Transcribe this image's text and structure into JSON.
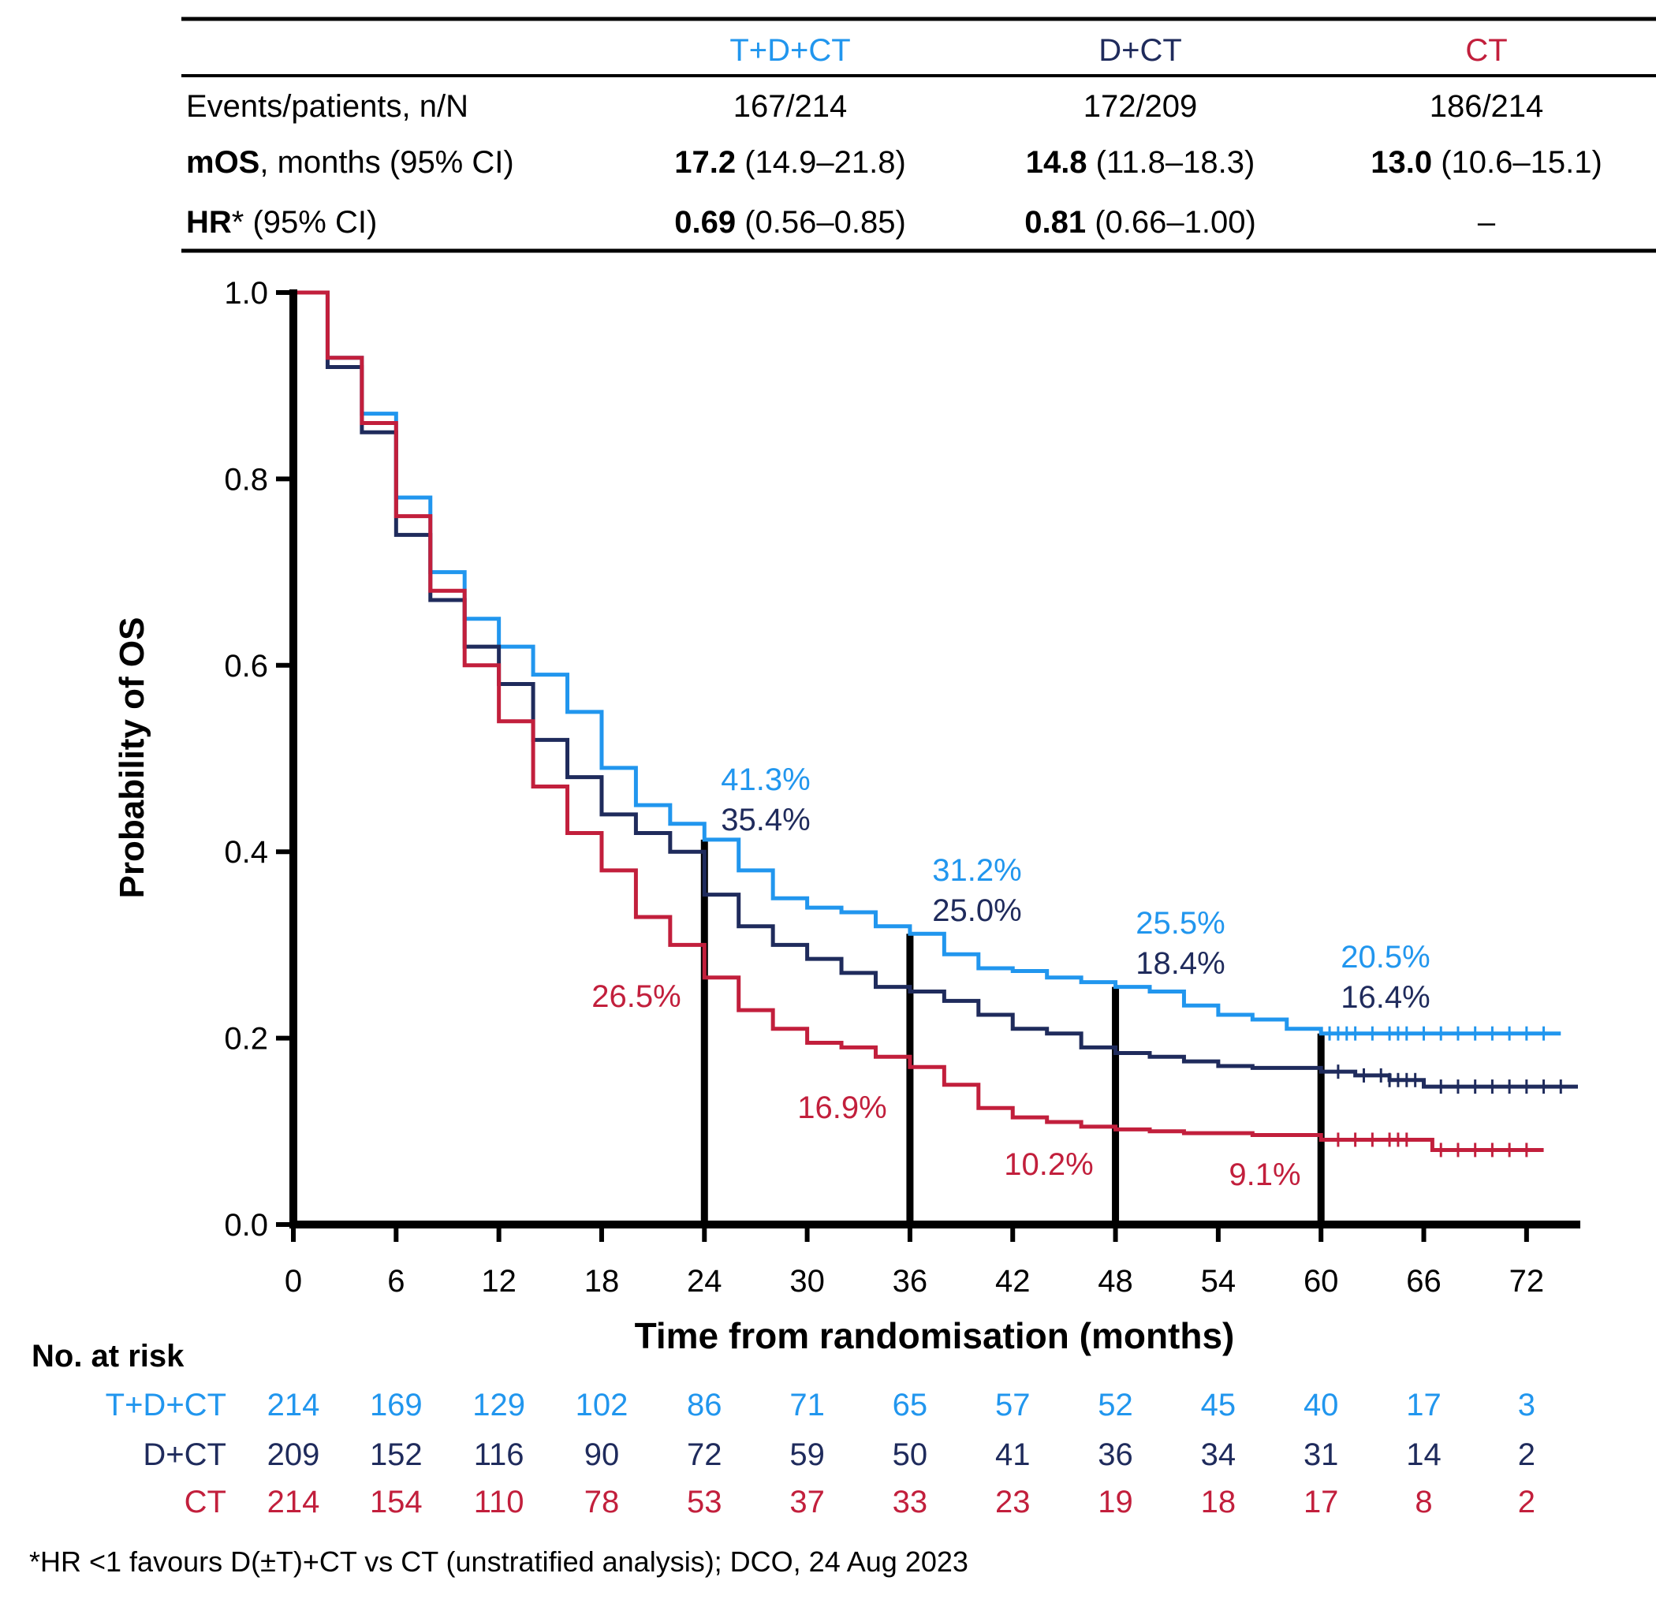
{
  "colors": {
    "tdct": "#2196ee",
    "dct": "#1f2b5c",
    "ct": "#c21f3c",
    "axis": "#000000"
  },
  "table": {
    "headers": [
      "T+D+CT",
      "D+CT",
      "CT"
    ],
    "rows": [
      {
        "label": "Events/patients, n/N",
        "cells": [
          {
            "bold": "",
            "rest": "167/214"
          },
          {
            "bold": "",
            "rest": "172/209"
          },
          {
            "bold": "",
            "rest": "186/214"
          }
        ]
      },
      {
        "label_bold": "mOS",
        "label": ", months (95% CI)",
        "cells": [
          {
            "bold": "17.2",
            "rest": " (14.9–21.8)"
          },
          {
            "bold": "14.8",
            "rest": " (11.8–18.3)"
          },
          {
            "bold": "13.0",
            "rest": " (10.6–15.1)"
          }
        ]
      },
      {
        "label_bold": "HR",
        "label": "* (95% CI)",
        "cells": [
          {
            "bold": "0.69",
            "rest": " (0.56–0.85)"
          },
          {
            "bold": "0.81",
            "rest": " (0.66–1.00)"
          },
          {
            "bold": "",
            "rest": "–"
          }
        ]
      }
    ]
  },
  "chart_data": {
    "type": "line",
    "step": true,
    "xlabel": "Time from randomisation (months)",
    "ylabel": "Probability of OS",
    "xlim": [
      0,
      75
    ],
    "ylim": [
      0,
      1.0
    ],
    "xticks": [
      0,
      6,
      12,
      18,
      24,
      30,
      36,
      42,
      48,
      54,
      60,
      66,
      72
    ],
    "yticks": [
      "0.0",
      "0.2",
      "0.4",
      "0.6",
      "0.8",
      "1.0"
    ],
    "grid": false,
    "reference_lines_at": [
      24,
      36,
      48,
      60
    ],
    "series": [
      {
        "name": "T+D+CT",
        "key": "tdct",
        "x": [
          0,
          2,
          4,
          6,
          8,
          10,
          12,
          14,
          16,
          18,
          20,
          22,
          24,
          26,
          28,
          30,
          32,
          34,
          36,
          38,
          40,
          42,
          44,
          46,
          48,
          50,
          52,
          54,
          56,
          58,
          60,
          74
        ],
        "y": [
          1.0,
          0.93,
          0.87,
          0.78,
          0.7,
          0.65,
          0.62,
          0.59,
          0.55,
          0.49,
          0.45,
          0.43,
          0.413,
          0.38,
          0.35,
          0.34,
          0.335,
          0.32,
          0.312,
          0.29,
          0.275,
          0.272,
          0.265,
          0.26,
          0.255,
          0.25,
          0.235,
          0.225,
          0.22,
          0.21,
          0.205,
          0.205
        ],
        "censored": [
          60.5,
          61,
          61.5,
          62,
          63,
          64,
          64.5,
          65,
          66,
          67,
          68,
          69,
          70,
          71,
          72,
          73
        ]
      },
      {
        "name": "D+CT",
        "key": "dct",
        "x": [
          0,
          2,
          4,
          6,
          8,
          10,
          12,
          14,
          16,
          18,
          20,
          22,
          24,
          26,
          28,
          30,
          32,
          34,
          36,
          38,
          40,
          42,
          44,
          46,
          48,
          50,
          52,
          54,
          56,
          60,
          62,
          64,
          66,
          75
        ],
        "y": [
          1.0,
          0.92,
          0.85,
          0.74,
          0.67,
          0.62,
          0.58,
          0.52,
          0.48,
          0.44,
          0.42,
          0.4,
          0.354,
          0.32,
          0.3,
          0.285,
          0.27,
          0.255,
          0.25,
          0.24,
          0.225,
          0.21,
          0.205,
          0.19,
          0.184,
          0.18,
          0.175,
          0.17,
          0.168,
          0.164,
          0.16,
          0.155,
          0.148,
          0.148
        ],
        "censored": [
          61,
          62.5,
          63.5,
          64,
          64.5,
          65,
          65.5,
          67,
          68,
          69,
          70,
          71,
          72,
          73,
          74
        ]
      },
      {
        "name": "CT",
        "key": "ct",
        "x": [
          0,
          2,
          4,
          6,
          8,
          10,
          12,
          14,
          16,
          18,
          20,
          22,
          24,
          26,
          28,
          30,
          32,
          34,
          36,
          38,
          40,
          42,
          44,
          46,
          48,
          50,
          52,
          56,
          60,
          66.5,
          73
        ],
        "y": [
          1.0,
          0.93,
          0.86,
          0.76,
          0.68,
          0.6,
          0.54,
          0.47,
          0.42,
          0.38,
          0.33,
          0.3,
          0.265,
          0.23,
          0.21,
          0.195,
          0.19,
          0.18,
          0.169,
          0.15,
          0.125,
          0.115,
          0.11,
          0.105,
          0.102,
          0.1,
          0.098,
          0.096,
          0.091,
          0.08,
          0.08
        ],
        "censored": [
          61,
          62,
          63,
          64,
          64.5,
          65,
          67,
          68,
          69,
          70,
          71,
          72
        ]
      }
    ],
    "annotations": {
      "tdct": [
        {
          "x": 24,
          "text": "41.3%"
        },
        {
          "x": 36,
          "text": "31.2%"
        },
        {
          "x": 48,
          "text": "25.5%"
        },
        {
          "x": 60,
          "text": "20.5%"
        }
      ],
      "dct": [
        {
          "x": 24,
          "text": "35.4%"
        },
        {
          "x": 36,
          "text": "25.0%"
        },
        {
          "x": 48,
          "text": "18.4%"
        },
        {
          "x": 60,
          "text": "16.4%"
        }
      ],
      "ct": [
        {
          "x": 24,
          "text": "26.5%"
        },
        {
          "x": 36,
          "text": "16.9%"
        },
        {
          "x": 48,
          "text": "10.2%"
        },
        {
          "x": 60,
          "text": "9.1%"
        }
      ]
    }
  },
  "risk_table": {
    "title": "No. at risk",
    "rows": [
      {
        "name": "T+D+CT",
        "key": "tdct",
        "values": [
          214,
          169,
          129,
          102,
          86,
          71,
          65,
          57,
          52,
          45,
          40,
          17,
          3
        ]
      },
      {
        "name": "D+CT",
        "key": "dct",
        "values": [
          209,
          152,
          116,
          90,
          72,
          59,
          50,
          41,
          36,
          34,
          31,
          14,
          2
        ]
      },
      {
        "name": "CT",
        "key": "ct",
        "values": [
          214,
          154,
          110,
          78,
          53,
          37,
          33,
          23,
          19,
          18,
          17,
          8,
          2
        ]
      }
    ]
  },
  "footnote": "*HR <1 favours D(±T)+CT vs CT (unstratified analysis); DCO, 24 Aug 2023"
}
